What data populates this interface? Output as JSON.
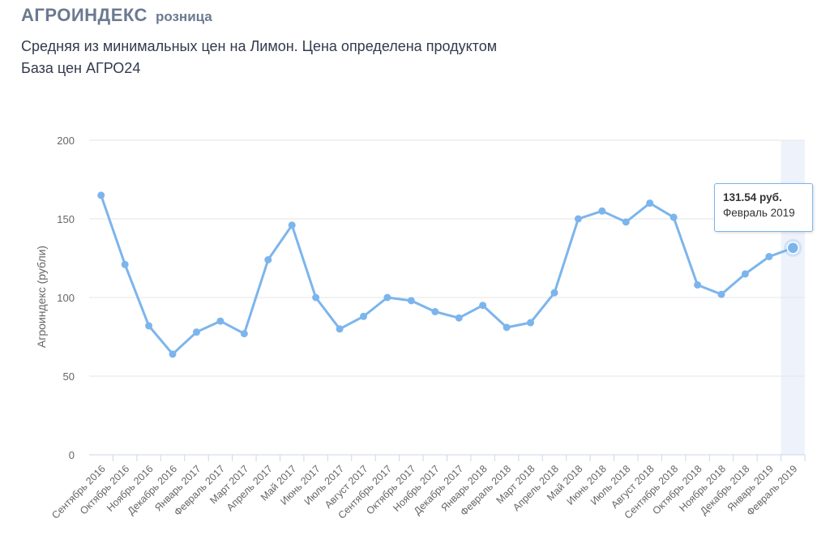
{
  "header": {
    "brand": "АГРОИНДЕКС",
    "subtitle": "розница",
    "title": "Средняя из минимальных цен на Лимон. Цена определена продуктом База цен АГРО24"
  },
  "tooltip": {
    "value": "131.54 руб.",
    "label": "Февраль 2019"
  },
  "colors": {
    "series": "#7cb5ec",
    "highlight_band": "#eef2fb",
    "grid": "#e6e6e6"
  },
  "chart_data": {
    "type": "line",
    "ylabel": "Агроиндекс (рубли)",
    "ylim": [
      0,
      200
    ],
    "yticks": [
      0,
      50,
      100,
      150,
      200
    ],
    "grid": true,
    "highlighted_index": 29,
    "categories": [
      "Сентябрь 2016",
      "Октябрь 2016",
      "Ноябрь 2016",
      "Декабрь 2016",
      "Январь 2017",
      "Февраль 2017",
      "Март 2017",
      "Апрель 2017",
      "Май 2017",
      "Июнь 2017",
      "Июль 2017",
      "Август 2017",
      "Сентябрь 2017",
      "Октябрь 2017",
      "Ноябрь 2017",
      "Декабрь 2017",
      "Январь 2018",
      "Февраль 2018",
      "Март 2018",
      "Апрель 2018",
      "Май 2018",
      "Июнь 2018",
      "Июль 2018",
      "Август 2018",
      "Сентябрь 2018",
      "Октябрь 2018",
      "Ноябрь 2018",
      "Декабрь 2018",
      "Январь 2019",
      "Февраль 2019"
    ],
    "values": [
      165,
      121,
      82,
      64,
      78,
      85,
      77,
      124,
      146,
      100,
      80,
      88,
      100,
      98,
      91,
      87,
      95,
      81,
      84,
      103,
      150,
      155,
      148,
      160,
      151,
      108,
      102,
      115,
      126,
      131.54
    ]
  }
}
